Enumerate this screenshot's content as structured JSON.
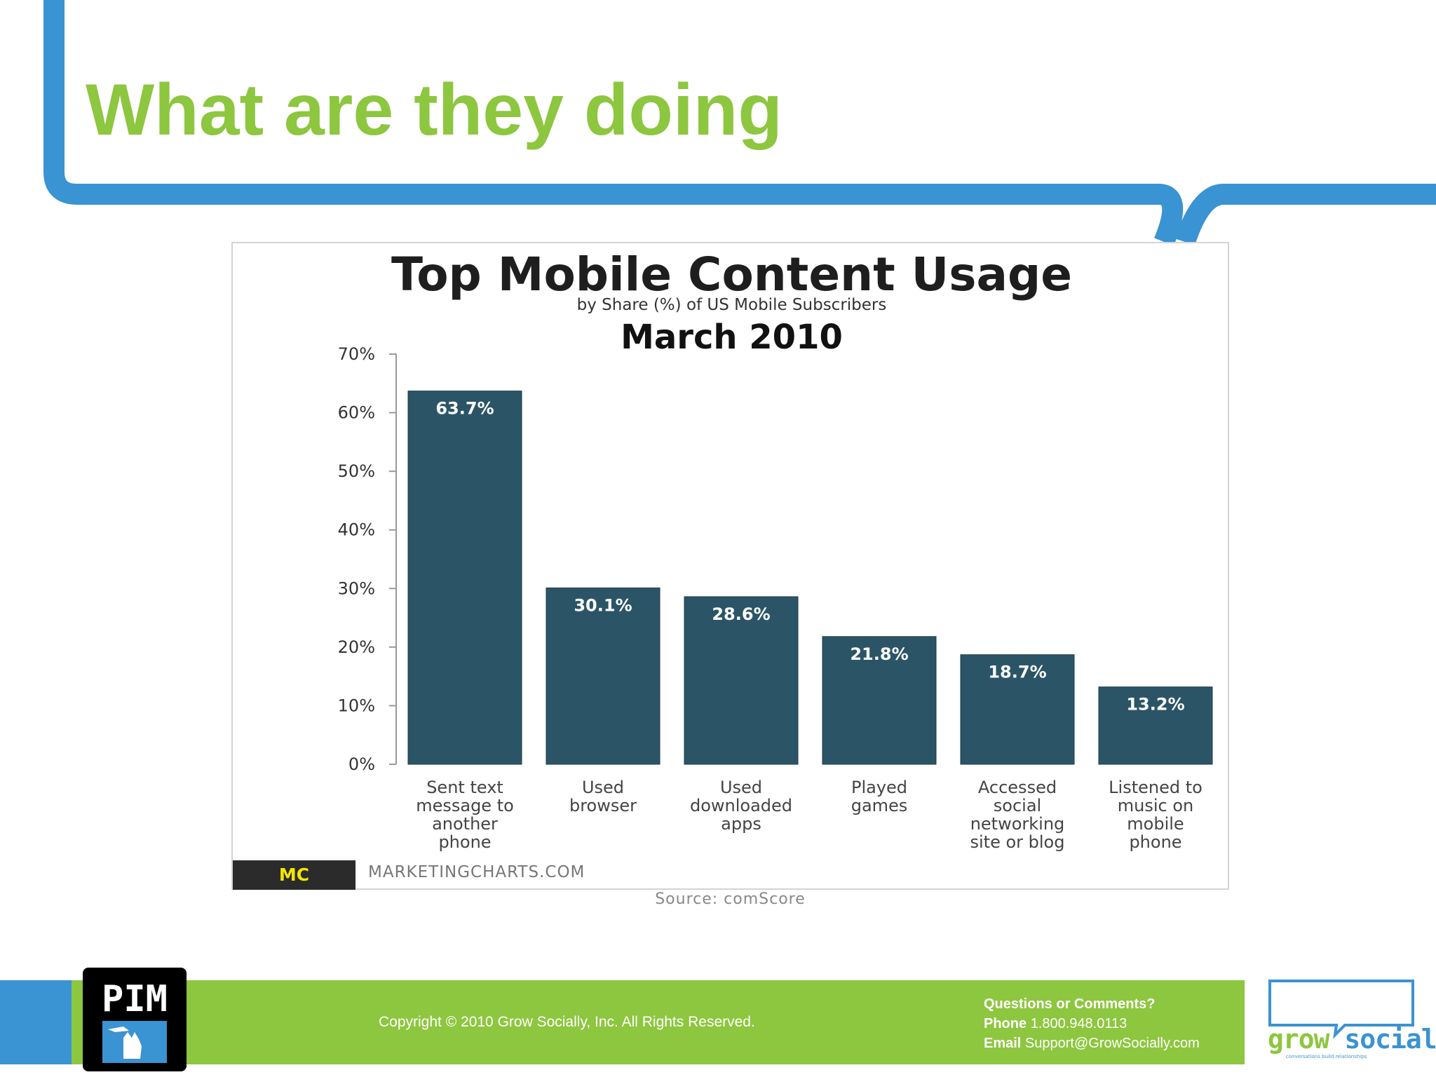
{
  "slide": {
    "title": "What are they doing",
    "accent_green": "#8dc63f",
    "accent_blue": "#3a93d2"
  },
  "chart_data": {
    "type": "bar",
    "title": "Top Mobile Content Usage",
    "subtitle": "by Share (%) of US Mobile Subscribers",
    "period": "March 2010",
    "categories": [
      [
        "Sent text",
        "message to",
        "another",
        "phone"
      ],
      [
        "Used",
        "browser"
      ],
      [
        "Used",
        "downloaded",
        "apps"
      ],
      [
        "Played",
        "games"
      ],
      [
        "Accessed",
        "social",
        "networking",
        "site or blog"
      ],
      [
        "Listened to",
        "music on",
        "mobile",
        "phone"
      ]
    ],
    "values": [
      63.7,
      30.1,
      28.6,
      21.8,
      18.7,
      13.2
    ],
    "value_labels": [
      "63.7%",
      "30.1%",
      "28.6%",
      "21.8%",
      "18.7%",
      "13.2%"
    ],
    "ylim": [
      0,
      70
    ],
    "yticks": [
      "0%",
      "10%",
      "20%",
      "30%",
      "40%",
      "50%",
      "60%",
      "70%"
    ],
    "bar_color": "#2b5566",
    "grid": false,
    "brand": "MC",
    "site": "MARKETINGCHARTS.COM",
    "source": "Source: comScore"
  },
  "footer": {
    "copyright": "Copyright © 2010 Grow Socially, Inc. All Rights Reserved.",
    "questions": "Questions or Comments?",
    "phone_label": "Phone",
    "phone": "1.800.948.0113",
    "email_label": "Email",
    "email": "Support@GrowSocially.com",
    "logo_left": "PIM",
    "logo_grow": "grow",
    "logo_socially": "socially",
    "logo_tagline": "conversations build relationships"
  }
}
